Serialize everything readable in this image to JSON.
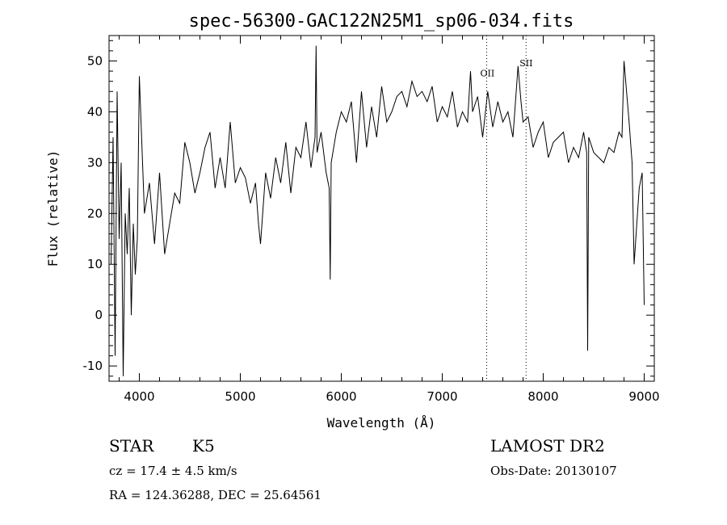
{
  "chart_data": {
    "type": "line",
    "title": "spec-56300-GAC122N25M1_sp06-034.fits",
    "xlabel": "Wavelength (Å)",
    "ylabel": "Flux (relative)",
    "xlim": [
      3700,
      9100
    ],
    "ylim": [
      -13,
      55
    ],
    "x_ticks": [
      4000,
      5000,
      6000,
      7000,
      8000,
      9000
    ],
    "y_ticks": [
      -10,
      0,
      10,
      20,
      30,
      40,
      50
    ],
    "grid": false,
    "line_color": "#000000",
    "line_markers": [
      {
        "label": "OII",
        "wavelength": 7440,
        "label_y": 47
      },
      {
        "label": "SII",
        "wavelength": 7830,
        "label_y": 49
      }
    ],
    "series": [
      {
        "x": [
          3720,
          3740,
          3760,
          3780,
          3800,
          3820,
          3840,
          3860,
          3880,
          3900,
          3920,
          3940,
          3960,
          3980,
          4000,
          4050,
          4100,
          4150,
          4200,
          4250,
          4300,
          4350,
          4400,
          4450,
          4500,
          4550,
          4600,
          4650,
          4700,
          4750,
          4800,
          4850,
          4900,
          4950,
          5000,
          5050,
          5100,
          5150,
          5180,
          5200,
          5250,
          5300,
          5350,
          5400,
          5450,
          5500,
          5550,
          5600,
          5650,
          5700,
          5740,
          5750,
          5760,
          5800,
          5850,
          5880,
          5890,
          5900,
          5950,
          6000,
          6050,
          6100,
          6150,
          6200,
          6250,
          6300,
          6350,
          6400,
          6450,
          6500,
          6550,
          6600,
          6650,
          6700,
          6750,
          6800,
          6850,
          6900,
          6950,
          7000,
          7050,
          7100,
          7150,
          7200,
          7250,
          7280,
          7300,
          7350,
          7400,
          7450,
          7500,
          7550,
          7600,
          7650,
          7700,
          7750,
          7780,
          7800,
          7850,
          7900,
          7950,
          8000,
          8050,
          8100,
          8150,
          8200,
          8250,
          8300,
          8350,
          8400,
          8430,
          8440,
          8450,
          8500,
          8550,
          8600,
          8650,
          8700,
          8750,
          8780,
          8800,
          8850,
          8880,
          8900,
          8950,
          8980,
          9000
        ],
        "y": [
          10,
          35,
          -8,
          44,
          15,
          30,
          -12,
          20,
          12,
          25,
          0,
          18,
          8,
          15,
          47,
          20,
          26,
          14,
          28,
          12,
          18,
          24,
          22,
          34,
          30,
          24,
          28,
          33,
          36,
          25,
          31,
          25,
          38,
          26,
          29,
          27,
          22,
          26,
          18,
          14,
          28,
          23,
          31,
          26,
          34,
          24,
          33,
          31,
          38,
          29,
          35,
          53,
          32,
          36,
          28,
          25,
          7,
          30,
          36,
          40,
          38,
          42,
          30,
          44,
          33,
          41,
          35,
          45,
          38,
          40,
          43,
          44,
          41,
          46,
          43,
          44,
          42,
          45,
          38,
          41,
          39,
          44,
          37,
          40,
          38,
          48,
          40,
          43,
          35,
          44,
          37,
          42,
          38,
          40,
          35,
          49,
          42,
          38,
          39,
          33,
          36,
          38,
          31,
          34,
          35,
          36,
          30,
          33,
          31,
          36,
          32,
          -7,
          35,
          32,
          31,
          30,
          33,
          32,
          36,
          35,
          50,
          38,
          30,
          10,
          25,
          28,
          2
        ]
      }
    ]
  },
  "info": {
    "class": "STAR",
    "subclass": "K5",
    "cz": "cz = 17.4 ± 4.5 km/s",
    "radec": "RA = 124.36288, DEC =  25.64561",
    "survey": "LAMOST DR2",
    "obs_date": "Obs-Date: 20130107"
  }
}
